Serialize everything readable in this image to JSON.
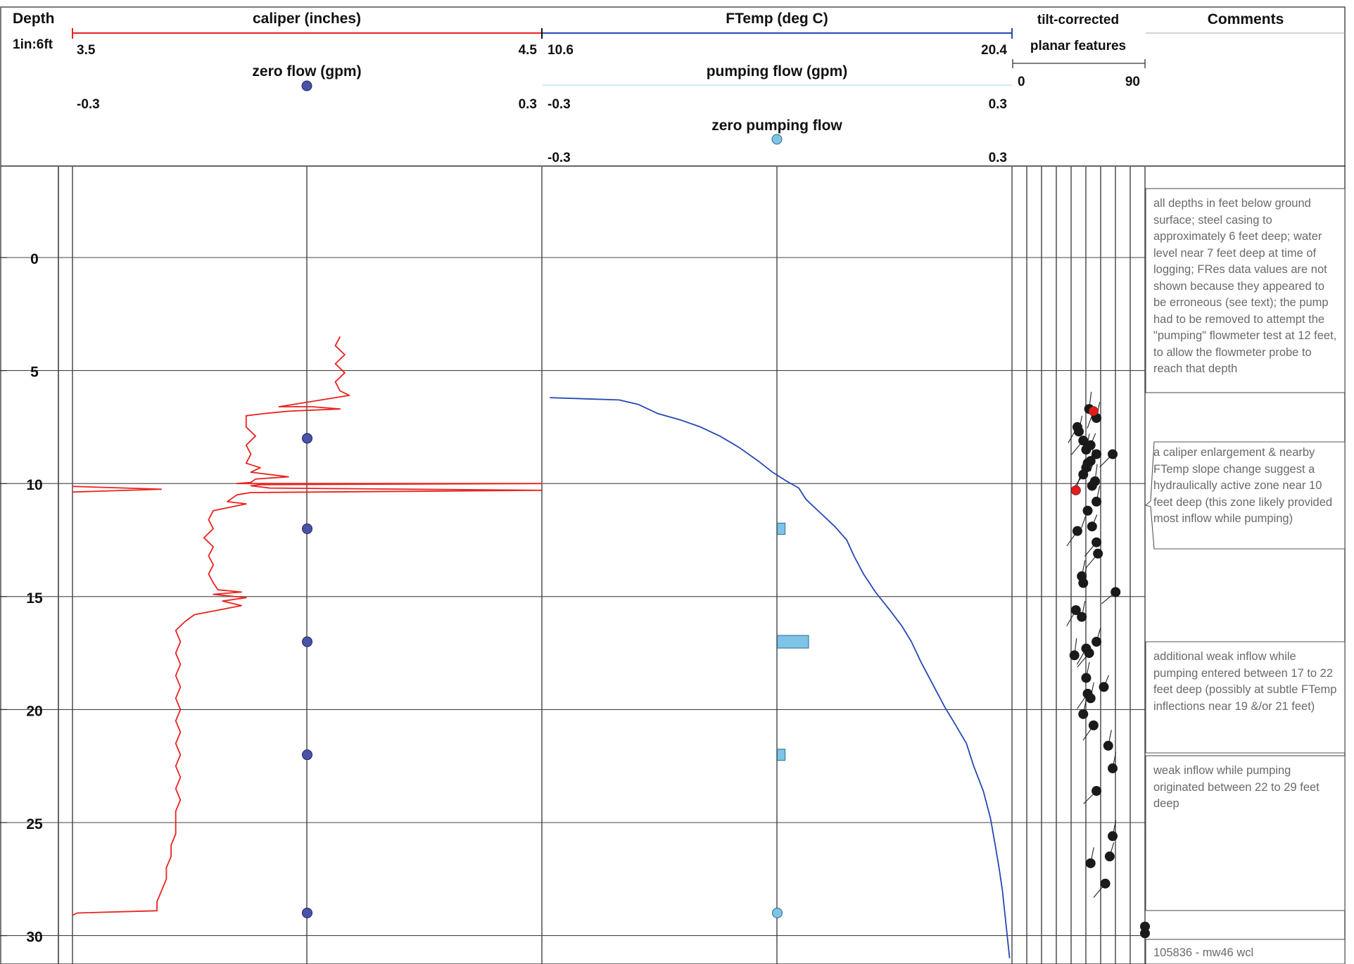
{
  "header": {
    "depth_title": "Depth",
    "scale": "1in:6ft",
    "comments_title": "Comments",
    "tilt_title_line1": "tilt-corrected",
    "tilt_title_line2": "planar features",
    "tilt_min": "0",
    "tilt_max": "90"
  },
  "colors": {
    "caliper": "#e8231f",
    "ftemp": "#2548b5",
    "zero_flow_marker": "#4a53a8",
    "pumping_flow_marker": "#7dc4e6",
    "feature_dot": "#1a1a1a",
    "feature_dot_red": "#e21b1b",
    "grid": "#333333"
  },
  "chart_data": [
    {
      "type": "line",
      "name": "caliper (inches)",
      "xlim": [
        "3.5",
        "4.5"
      ],
      "points": [
        [
          4.07,
          3.5
        ],
        [
          4.06,
          3.9
        ],
        [
          4.08,
          4.3
        ],
        [
          4.06,
          4.7
        ],
        [
          4.08,
          5.1
        ],
        [
          4.06,
          5.5
        ],
        [
          4.07,
          5.9
        ],
        [
          4.09,
          6.1
        ],
        [
          4.06,
          6.2
        ],
        [
          4.0,
          6.4
        ],
        [
          3.94,
          6.6
        ],
        [
          4.01,
          6.6
        ],
        [
          4.07,
          6.7
        ],
        [
          3.96,
          6.8
        ],
        [
          3.91,
          6.9
        ],
        [
          3.87,
          7.0
        ],
        [
          3.87,
          7.5
        ],
        [
          3.89,
          7.9
        ],
        [
          3.87,
          8.3
        ],
        [
          3.88,
          8.7
        ],
        [
          3.87,
          9.1
        ],
        [
          3.9,
          9.3
        ],
        [
          3.88,
          9.5
        ],
        [
          3.96,
          9.7
        ],
        [
          3.89,
          9.8
        ],
        [
          3.88,
          9.95
        ],
        [
          3.85,
          10.0
        ],
        [
          4.5,
          10.0
        ],
        [
          3.9,
          10.05
        ],
        [
          3.88,
          10.1
        ],
        [
          3.92,
          10.2
        ],
        [
          4.5,
          10.3
        ],
        [
          3.88,
          10.4
        ],
        [
          3.85,
          10.5
        ],
        [
          3.83,
          10.8
        ],
        [
          3.87,
          10.9
        ],
        [
          3.8,
          11.2
        ],
        [
          3.79,
          11.6
        ],
        [
          3.8,
          12.0
        ],
        [
          3.78,
          12.4
        ],
        [
          3.8,
          12.8
        ],
        [
          3.79,
          13.2
        ],
        [
          3.8,
          13.6
        ],
        [
          3.79,
          14.0
        ],
        [
          3.8,
          14.4
        ],
        [
          3.81,
          14.7
        ],
        [
          3.86,
          14.8
        ],
        [
          3.8,
          14.9
        ],
        [
          3.87,
          15.05
        ],
        [
          3.82,
          15.2
        ],
        [
          3.86,
          15.4
        ],
        [
          3.81,
          15.6
        ],
        [
          3.76,
          15.8
        ],
        [
          3.74,
          16.1
        ],
        [
          3.72,
          16.5
        ],
        [
          3.73,
          17.0
        ],
        [
          3.72,
          17.5
        ],
        [
          3.73,
          18.0
        ],
        [
          3.72,
          18.5
        ],
        [
          3.73,
          19.0
        ],
        [
          3.72,
          19.5
        ],
        [
          3.73,
          20.0
        ],
        [
          3.72,
          20.5
        ],
        [
          3.73,
          21.0
        ],
        [
          3.72,
          21.5
        ],
        [
          3.73,
          22.0
        ],
        [
          3.72,
          22.5
        ],
        [
          3.73,
          23.0
        ],
        [
          3.72,
          23.5
        ],
        [
          3.73,
          24.0
        ],
        [
          3.72,
          24.5
        ],
        [
          3.72,
          25.0
        ],
        [
          3.72,
          25.5
        ],
        [
          3.71,
          26.0
        ],
        [
          3.71,
          26.5
        ],
        [
          3.7,
          27.0
        ],
        [
          3.7,
          27.5
        ],
        [
          3.69,
          28.0
        ],
        [
          3.68,
          28.5
        ],
        [
          3.68,
          28.9
        ],
        [
          3.51,
          29.0
        ],
        [
          3.5,
          29.1
        ]
      ],
      "spike_at_10_2": [
        [
          3.5,
          10.25
        ],
        [
          3.69,
          10.25
        ]
      ]
    },
    {
      "type": "line",
      "name": "FTemp (deg C)",
      "xlim": [
        "10.6",
        "20.4"
      ],
      "points": [
        [
          10.75,
          6.2
        ],
        [
          11.5,
          6.25
        ],
        [
          12.2,
          6.3
        ],
        [
          12.6,
          6.5
        ],
        [
          13.0,
          6.9
        ],
        [
          13.5,
          7.2
        ],
        [
          13.9,
          7.5
        ],
        [
          14.3,
          7.9
        ],
        [
          14.7,
          8.4
        ],
        [
          15.1,
          9.0
        ],
        [
          15.4,
          9.5
        ],
        [
          15.7,
          9.9
        ],
        [
          15.95,
          10.2
        ],
        [
          16.1,
          10.7
        ],
        [
          16.4,
          11.3
        ],
        [
          16.7,
          11.9
        ],
        [
          16.95,
          12.5
        ],
        [
          17.1,
          13.2
        ],
        [
          17.3,
          14.0
        ],
        [
          17.55,
          14.8
        ],
        [
          17.85,
          15.6
        ],
        [
          18.1,
          16.3
        ],
        [
          18.3,
          17.0
        ],
        [
          18.5,
          17.9
        ],
        [
          18.75,
          18.9
        ],
        [
          19.0,
          19.9
        ],
        [
          19.2,
          20.6
        ],
        [
          19.45,
          21.5
        ],
        [
          19.6,
          22.5
        ],
        [
          19.8,
          23.6
        ],
        [
          19.95,
          24.8
        ],
        [
          20.05,
          26.0
        ],
        [
          20.13,
          27.0
        ],
        [
          20.2,
          28.0
        ],
        [
          20.25,
          29.0
        ],
        [
          20.3,
          30.0
        ],
        [
          20.35,
          31.0
        ]
      ]
    },
    {
      "type": "scatter",
      "name": "zero flow (gpm)",
      "xlim": [
        "-0.3",
        "0.3"
      ],
      "points": [
        [
          0,
          8
        ],
        [
          0,
          12
        ],
        [
          0,
          17
        ],
        [
          0,
          22
        ],
        [
          0,
          29
        ]
      ]
    },
    {
      "type": "scatter",
      "name": "pumping flow (gpm)",
      "xlim": [
        "-0.3",
        "0.3"
      ],
      "points": [
        [
          0.01,
          12
        ],
        [
          0.04,
          17
        ],
        [
          0.01,
          22
        ],
        [
          0,
          29
        ]
      ]
    },
    {
      "type": "scatter",
      "name": "zero pumping flow",
      "xlim": [
        "-0.3",
        "0.3"
      ],
      "points": [
        [
          0,
          29
        ]
      ]
    },
    {
      "type": "scatter",
      "name": "tilt-corrected planar features",
      "xlim": [
        "0",
        "90"
      ],
      "points": [
        [
          52,
          6.7,
          70
        ],
        [
          55,
          6.8,
          110
        ],
        [
          57,
          7.1,
          60
        ],
        [
          44,
          7.5,
          120
        ],
        [
          45,
          7.7,
          60
        ],
        [
          48,
          8.1,
          130
        ],
        [
          50,
          8.5,
          60
        ],
        [
          53,
          8.3,
          40
        ],
        [
          57,
          8.7,
          110
        ],
        [
          68,
          8.7,
          135
        ],
        [
          51,
          9.1,
          115
        ],
        [
          50,
          9.3,
          120
        ],
        [
          53,
          9.0,
          60
        ],
        [
          48,
          9.6,
          125
        ],
        [
          56,
          9.9,
          70
        ],
        [
          54,
          10.1,
          30
        ],
        [
          43,
          10.3,
          50
        ],
        [
          57,
          10.8,
          60
        ],
        [
          51,
          11.2,
          110
        ],
        [
          54,
          11.9,
          40
        ],
        [
          44,
          12.1,
          125
        ],
        [
          57,
          12.6,
          130
        ],
        [
          58,
          13.1,
          130
        ],
        [
          47,
          14.1,
          60
        ],
        [
          48,
          14.4,
          60
        ],
        [
          70,
          14.8,
          140
        ],
        [
          43,
          15.6,
          120
        ],
        [
          47,
          15.9,
          60
        ],
        [
          57,
          17.0,
          50
        ],
        [
          50,
          17.3,
          120
        ],
        [
          52,
          17.5,
          130
        ],
        [
          42,
          17.6,
          70
        ],
        [
          50,
          18.6,
          60
        ],
        [
          62,
          19.0,
          40
        ],
        [
          51,
          19.3,
          125
        ],
        [
          53,
          19.5,
          60
        ],
        [
          48,
          20.2,
          60
        ],
        [
          55,
          20.7,
          125
        ],
        [
          65,
          21.6,
          60
        ],
        [
          68,
          22.6,
          60
        ],
        [
          57,
          23.6,
          135
        ],
        [
          68,
          25.6,
          60
        ],
        [
          66,
          26.5,
          50
        ],
        [
          53,
          26.8,
          60
        ],
        [
          63,
          27.7,
          130
        ],
        [
          90,
          29.6,
          0
        ],
        [
          90,
          29.9,
          0
        ]
      ],
      "red_points": [
        [
          55,
          6.8
        ],
        [
          43,
          10.3
        ]
      ]
    }
  ],
  "depth_axis": {
    "ticks": [
      "0",
      "5",
      "10",
      "15",
      "20",
      "25",
      "30"
    ],
    "range": [
      -4,
      31.2
    ]
  },
  "tracks": {
    "caliper": {
      "title": "caliper (inches)",
      "min": "3.5",
      "max": "4.5"
    },
    "zero_flow": {
      "title": "zero flow (gpm)",
      "min": "-0.3",
      "max": "0.3"
    },
    "ftemp": {
      "title": "FTemp (deg C)",
      "min": "10.6",
      "max": "20.4"
    },
    "pumping_flow": {
      "title": "pumping flow (gpm)",
      "min": "-0.3",
      "max": "0.3"
    },
    "zero_pumping": {
      "title": "zero pumping flow",
      "min": "-0.3",
      "max": "0.3"
    }
  },
  "comments": [
    "all depths in feet below ground surface; steel casing to approximately 6 feet deep; water level near 7 feet deep at time of logging; FRes data values are not shown because they appeared to be erroneous (see text); the pump had to be removed to attempt the \"pumping\" flowmeter test at 12 feet, to allow the flowmeter probe to reach that depth",
    "a caliper enlargement & nearby FTemp slope change suggest a hydraulically active zone near 10 feet deep (this zone likely provided most inflow while pumping)",
    "additional weak inflow while pumping entered between 17 to 22 feet deep (possibly at subtle FTemp inflections near 19 &/or 21 feet)",
    "weak inflow while pumping originated between 22 to 29 feet deep",
    "105836 - mw46 wcl"
  ]
}
